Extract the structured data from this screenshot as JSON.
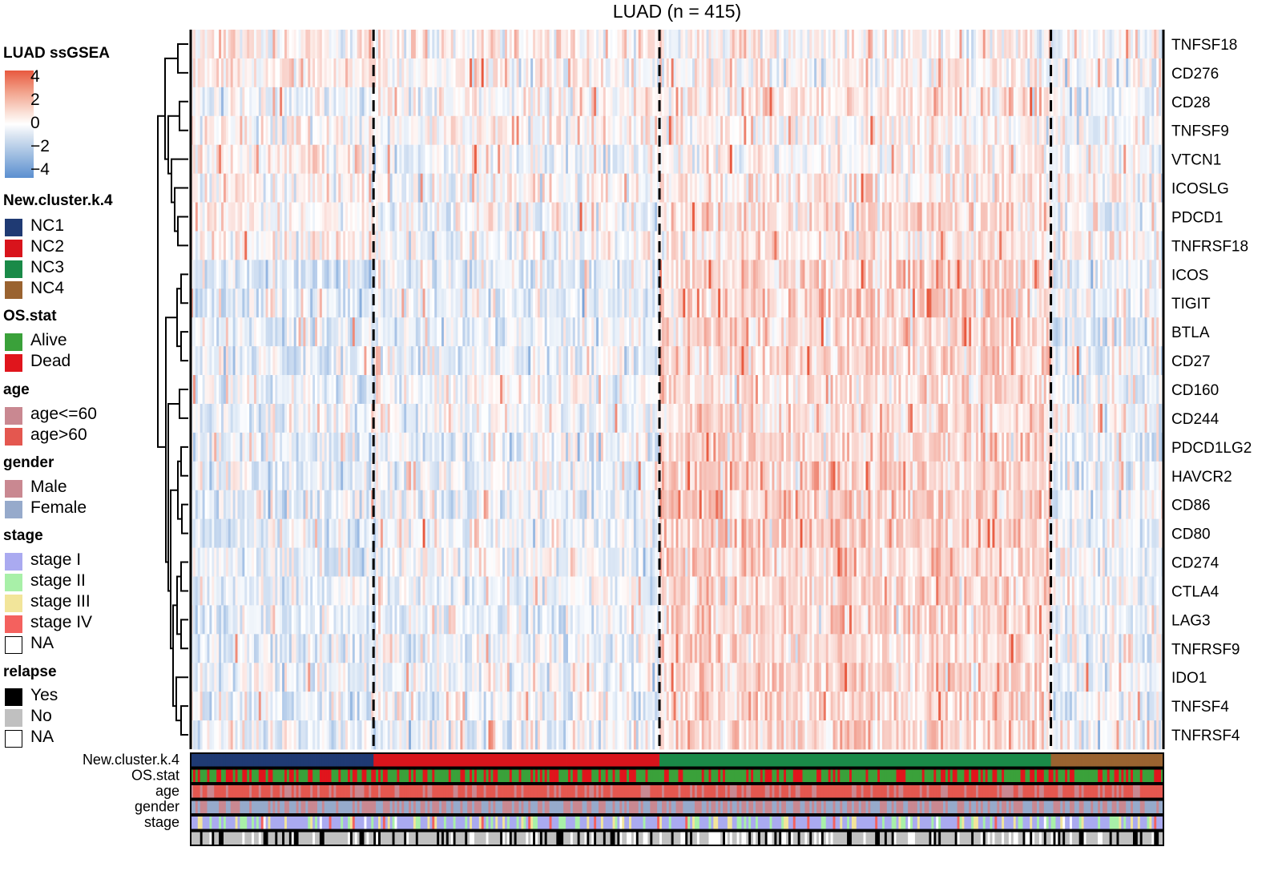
{
  "chart_data": {
    "type": "heatmap",
    "title": "LUAD (n = 415)",
    "n_samples": 415,
    "rows": [
      "TNFSF18",
      "CD276",
      "CD28",
      "TNFSF9",
      "VTCN1",
      "ICOSLG",
      "PDCD1",
      "TNFRSF18",
      "ICOS",
      "TIGIT",
      "BTLA",
      "CD27",
      "CD160",
      "CD244",
      "PDCD1LG2",
      "HAVCR2",
      "CD86",
      "CD80",
      "CD274",
      "CTLA4",
      "LAG3",
      "TNFRSF9",
      "IDO1",
      "TNFSF4",
      "TNFRSF4"
    ],
    "color_scale": {
      "title": "LUAD ssGSEA",
      "ticks": [
        "4",
        "2",
        "0",
        "−2",
        "−4"
      ],
      "range": [
        -4,
        4
      ],
      "low_color": "#5b8fd0",
      "mid_color": "#ffffff",
      "high_color": "#e8593f"
    },
    "clusters": [
      {
        "name": "NC1",
        "n": 78,
        "mean_by_row": [
          0.3,
          0.5,
          -0.3,
          0.1,
          0.4,
          0.2,
          0.0,
          0.2,
          -0.8,
          -0.7,
          -0.7,
          -0.6,
          -0.4,
          -0.5,
          -0.6,
          -0.7,
          -0.6,
          -0.6,
          -0.5,
          -0.5,
          -0.5,
          -0.5,
          -0.5,
          -0.5,
          -0.5
        ]
      },
      {
        "name": "NC2",
        "n": 122,
        "mean_by_row": [
          0.3,
          0.2,
          0.0,
          0.1,
          -0.2,
          0.0,
          -0.3,
          -0.2,
          -0.5,
          -0.5,
          -0.4,
          -0.4,
          -0.1,
          -0.3,
          -0.4,
          -0.4,
          -0.4,
          -0.3,
          -0.3,
          -0.3,
          -0.4,
          -0.3,
          -0.3,
          -0.3,
          -0.4
        ]
      },
      {
        "name": "NC3",
        "n": 167,
        "mean_by_row": [
          0.2,
          0.1,
          0.5,
          0.3,
          0.2,
          0.4,
          0.7,
          0.6,
          1.0,
          1.0,
          0.9,
          0.9,
          0.7,
          0.8,
          1.0,
          1.1,
          1.1,
          1.0,
          1.0,
          1.0,
          1.0,
          0.9,
          1.0,
          0.9,
          1.0
        ]
      },
      {
        "name": "NC4",
        "n": 48,
        "mean_by_row": [
          -0.1,
          0.0,
          -0.4,
          -0.3,
          -0.2,
          0.0,
          -0.4,
          0.1,
          -0.5,
          -0.4,
          -0.5,
          -0.4,
          -0.3,
          -0.3,
          -0.4,
          -0.4,
          -0.4,
          -0.4,
          -0.3,
          -0.3,
          -0.3,
          -0.3,
          -0.4,
          -0.4,
          -0.5
        ]
      }
    ],
    "annotation_tracks": [
      "New.cluster.k.4",
      "OS.stat",
      "age",
      "gender",
      "stage",
      "relapse"
    ],
    "annotation_track_labels": [
      "New.cluster.k.4",
      "OS.stat",
      "age",
      "gender",
      "stage"
    ],
    "annotation_fractions": {
      "OS.stat": {
        "Alive": 0.63,
        "Dead": 0.37
      },
      "age": {
        "age<=60": 0.3,
        "age>60": 0.7
      },
      "gender": {
        "Male": 0.5,
        "Female": 0.5
      },
      "stage": {
        "stage I": 0.6,
        "stage II": 0.2,
        "stage III": 0.12,
        "stage IV": 0.05,
        "NA": 0.03
      },
      "relapse": {
        "Yes": 0.2,
        "No": 0.6,
        "NA": 0.2
      }
    },
    "legend_placement": "left"
  },
  "legend": {
    "scale_title": "LUAD ssGSEA",
    "groups": [
      {
        "title": "New.cluster.k.4",
        "items": [
          {
            "label": "NC1",
            "color": "#1f3a73"
          },
          {
            "label": "NC2",
            "color": "#d8141c"
          },
          {
            "label": "NC3",
            "color": "#1a8a48"
          },
          {
            "label": "NC4",
            "color": "#9a6330"
          }
        ]
      },
      {
        "title": "OS.stat",
        "items": [
          {
            "label": "Alive",
            "color": "#3aa13a"
          },
          {
            "label": "Dead",
            "color": "#e0151c"
          }
        ]
      },
      {
        "title": "age",
        "items": [
          {
            "label": "age<=60",
            "color": "#c98891"
          },
          {
            "label": "age>60",
            "color": "#e4574f"
          }
        ]
      },
      {
        "title": "gender",
        "items": [
          {
            "label": "Male",
            "color": "#c98891"
          },
          {
            "label": "Female",
            "color": "#96aacb"
          }
        ]
      },
      {
        "title": "stage",
        "items": [
          {
            "label": "stage I",
            "color": "#aaaaf0"
          },
          {
            "label": "stage II",
            "color": "#a8f0a8"
          },
          {
            "label": "stage III",
            "color": "#f2e59a"
          },
          {
            "label": "stage IV",
            "color": "#f4615e"
          },
          {
            "label": "NA",
            "color": "#ffffff"
          }
        ]
      },
      {
        "title": "relapse",
        "items": [
          {
            "label": "Yes",
            "color": "#000000"
          },
          {
            "label": "No",
            "color": "#c0c0c0"
          },
          {
            "label": "NA",
            "color": "#ffffff"
          }
        ]
      }
    ]
  }
}
